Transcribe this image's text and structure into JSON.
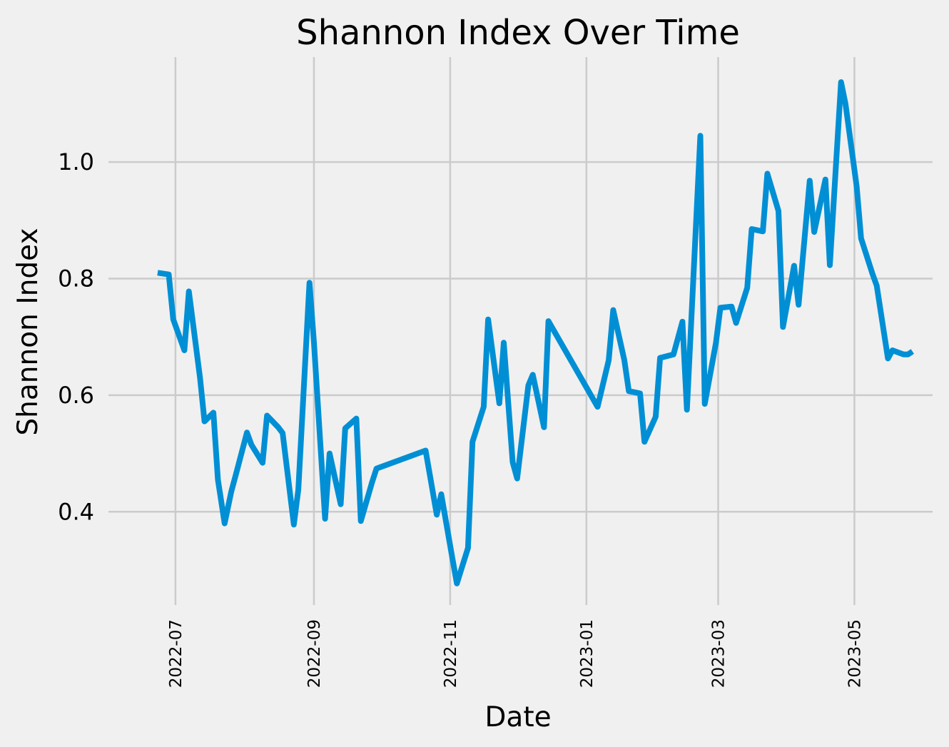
{
  "chart_data": {
    "type": "line",
    "title": "Shannon Index Over Time",
    "xlabel": "Date",
    "ylabel": "Shannon Index",
    "x_type": "date",
    "xlim": [
      "2022-06-01",
      "2023-06-05"
    ],
    "ylim": [
      0.24,
      1.18
    ],
    "x_ticks": [
      "2022-07-01",
      "2022-09-01",
      "2022-11-01",
      "2023-01-01",
      "2023-03-01",
      "2023-05-01"
    ],
    "x_tick_labels": [
      "2022-07",
      "2022-09",
      "2022-11",
      "2023-01",
      "2023-03",
      "2023-05"
    ],
    "y_ticks": [
      0.4,
      0.6,
      0.8,
      1.0
    ],
    "y_tick_labels": [
      "0.4",
      "0.6",
      "0.8",
      "1.0"
    ],
    "grid": true,
    "line_color": "#008fd5",
    "background_color": "#f0f0f0",
    "grid_color": "#cbcbcb",
    "series": [
      {
        "x": [
          "2022-06-23",
          "2022-06-28",
          "2022-06-30",
          "2022-07-05",
          "2022-07-07",
          "2022-07-12",
          "2022-07-14",
          "2022-07-18",
          "2022-07-20",
          "2022-07-23",
          "2022-07-26",
          "2022-07-28",
          "2022-08-02",
          "2022-08-04",
          "2022-08-09",
          "2022-08-11",
          "2022-08-16",
          "2022-08-18",
          "2022-08-23",
          "2022-08-25",
          "2022-08-30",
          "2022-09-01",
          "2022-09-06",
          "2022-09-08",
          "2022-09-13",
          "2022-09-15",
          "2022-09-20",
          "2022-09-22",
          "2022-09-27",
          "2022-09-29",
          "2022-10-21",
          "2022-10-26",
          "2022-10-28",
          "2022-11-02",
          "2022-11-04",
          "2022-11-09",
          "2022-11-11",
          "2022-11-16",
          "2022-11-18",
          "2022-11-23",
          "2022-11-25",
          "2022-11-29",
          "2022-12-01",
          "2022-12-06",
          "2022-12-08",
          "2022-12-13",
          "2022-12-15",
          "2023-01-06",
          "2023-01-11",
          "2023-01-13",
          "2023-01-18",
          "2023-01-20",
          "2023-01-25",
          "2023-01-27",
          "2023-02-01",
          "2023-02-03",
          "2023-02-09",
          "2023-02-13",
          "2023-02-15",
          "2023-02-21",
          "2023-02-23",
          "2023-02-28",
          "2023-03-02",
          "2023-03-07",
          "2023-03-09",
          "2023-03-14",
          "2023-03-16",
          "2023-03-21",
          "2023-03-23",
          "2023-03-28",
          "2023-03-30",
          "2023-04-04",
          "2023-04-06",
          "2023-04-11",
          "2023-04-13",
          "2023-04-18",
          "2023-04-20",
          "2023-04-25",
          "2023-04-27",
          "2023-05-02",
          "2023-05-04",
          "2023-05-09",
          "2023-05-11",
          "2023-05-16",
          "2023-05-18",
          "2023-05-23",
          "2023-05-25",
          "2023-05-27"
        ],
        "y": [
          0.81,
          0.807,
          0.73,
          0.677,
          0.778,
          0.63,
          0.555,
          0.57,
          0.455,
          0.38,
          0.435,
          0.463,
          0.536,
          0.515,
          0.484,
          0.565,
          0.545,
          0.535,
          0.378,
          0.438,
          0.793,
          0.69,
          0.388,
          0.5,
          0.413,
          0.543,
          0.56,
          0.384,
          0.45,
          0.474,
          0.505,
          0.395,
          0.43,
          0.32,
          0.277,
          0.338,
          0.52,
          0.58,
          0.73,
          0.586,
          0.69,
          0.485,
          0.457,
          0.617,
          0.635,
          0.545,
          0.727,
          0.58,
          0.66,
          0.746,
          0.66,
          0.607,
          0.603,
          0.52,
          0.563,
          0.664,
          0.67,
          0.726,
          0.575,
          1.045,
          0.585,
          0.69,
          0.75,
          0.752,
          0.724,
          0.784,
          0.885,
          0.881,
          0.98,
          0.916,
          0.717,
          0.822,
          0.755,
          0.968,
          0.88,
          0.97,
          0.823,
          1.137,
          1.1,
          0.958,
          0.869,
          0.809,
          0.788,
          0.663,
          0.677,
          0.67,
          0.67,
          0.675
        ]
      }
    ]
  }
}
